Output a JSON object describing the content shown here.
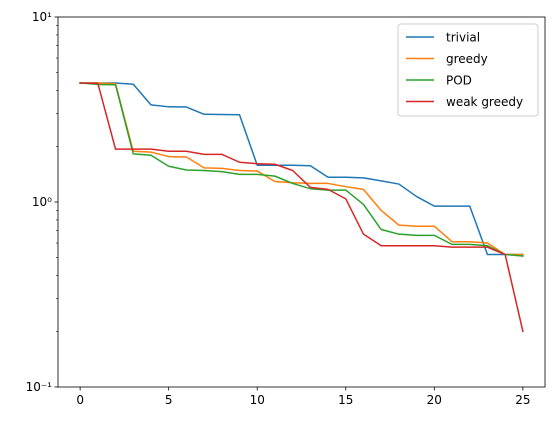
{
  "chart_data": {
    "type": "line",
    "title": "",
    "xlabel": "",
    "ylabel": "",
    "y_scale": "log",
    "xlim": [
      -1.25,
      26.25
    ],
    "ylim": [
      0.1,
      10
    ],
    "x_ticks": [
      0,
      5,
      10,
      15,
      20,
      25
    ],
    "x_tick_labels": [
      "0",
      "5",
      "10",
      "15",
      "20",
      "25"
    ],
    "y_ticks": [
      0.1,
      1,
      10
    ],
    "y_tick_labels": [
      "10⁻¹",
      "10⁰",
      "10¹"
    ],
    "grid": false,
    "legend_position": "top-right",
    "x": [
      0,
      1,
      2,
      3,
      4,
      5,
      6,
      7,
      8,
      9,
      10,
      11,
      12,
      13,
      14,
      15,
      16,
      17,
      18,
      19,
      20,
      21,
      22,
      23,
      24,
      25
    ],
    "series": [
      {
        "name": "trivial",
        "color": "#1f77b4",
        "values": [
          4.4,
          4.4,
          4.4,
          4.33,
          3.35,
          3.27,
          3.26,
          2.98,
          2.97,
          2.96,
          1.58,
          1.58,
          1.58,
          1.57,
          1.36,
          1.36,
          1.35,
          1.3,
          1.25,
          1.07,
          0.95,
          0.95,
          0.95,
          0.52,
          0.52,
          0.52
        ]
      },
      {
        "name": "greedy",
        "color": "#ff7f0e",
        "values": [
          4.4,
          4.4,
          4.36,
          1.88,
          1.86,
          1.76,
          1.75,
          1.53,
          1.52,
          1.48,
          1.47,
          1.29,
          1.27,
          1.26,
          1.26,
          1.21,
          1.17,
          0.9,
          0.75,
          0.74,
          0.74,
          0.61,
          0.61,
          0.6,
          0.52,
          0.52
        ]
      },
      {
        "name": "POD",
        "color": "#2ca02c",
        "values": [
          4.4,
          4.32,
          4.3,
          1.82,
          1.79,
          1.56,
          1.49,
          1.48,
          1.46,
          1.41,
          1.41,
          1.38,
          1.26,
          1.18,
          1.16,
          1.16,
          0.97,
          0.71,
          0.67,
          0.66,
          0.66,
          0.59,
          0.59,
          0.58,
          0.52,
          0.51
        ]
      },
      {
        "name": "weak greedy",
        "color": "#d62728",
        "values": [
          4.4,
          4.38,
          1.93,
          1.93,
          1.93,
          1.88,
          1.88,
          1.81,
          1.81,
          1.64,
          1.61,
          1.6,
          1.48,
          1.2,
          1.17,
          1.04,
          0.67,
          0.58,
          0.58,
          0.58,
          0.58,
          0.57,
          0.57,
          0.57,
          0.52,
          0.2
        ]
      }
    ]
  }
}
